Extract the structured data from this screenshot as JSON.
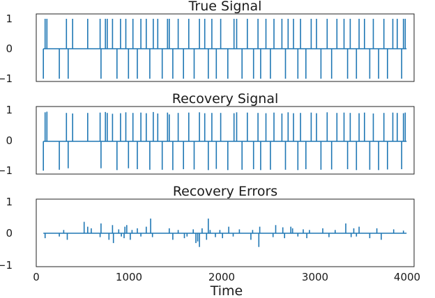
{
  "chart_data": [
    {
      "type": "line",
      "title": "True Signal",
      "xlim": [
        -80,
        4180
      ],
      "ylim": [
        -1.1,
        1.1
      ],
      "yticks": [
        1,
        0,
        -1
      ],
      "ytick_labels": [
        "1",
        "0",
        "−1"
      ],
      "grid": false,
      "color": "#1f77b4",
      "series": [
        {
          "kind": "spikes",
          "points": [
            [
              0,
              -1
            ],
            [
              20,
              1
            ],
            [
              40,
              1
            ],
            [
              180,
              -1
            ],
            [
              260,
              1
            ],
            [
              280,
              -1
            ],
            [
              330,
              1
            ],
            [
              500,
              1
            ],
            [
              640,
              1
            ],
            [
              650,
              -1
            ],
            [
              700,
              1
            ],
            [
              720,
              1
            ],
            [
              780,
              1
            ],
            [
              830,
              -1
            ],
            [
              870,
              1
            ],
            [
              930,
              1
            ],
            [
              960,
              -1
            ],
            [
              1010,
              1
            ],
            [
              1060,
              -1
            ],
            [
              1100,
              1
            ],
            [
              1160,
              1
            ],
            [
              1200,
              -1
            ],
            [
              1240,
              1
            ],
            [
              1290,
              1
            ],
            [
              1340,
              -1
            ],
            [
              1400,
              1
            ],
            [
              1420,
              1
            ],
            [
              1460,
              -1
            ],
            [
              1520,
              1
            ],
            [
              1580,
              -1
            ],
            [
              1640,
              1
            ],
            [
              1700,
              -1
            ],
            [
              1760,
              1
            ],
            [
              1820,
              1
            ],
            [
              1860,
              -1
            ],
            [
              1900,
              1
            ],
            [
              1950,
              -1
            ],
            [
              2000,
              1
            ],
            [
              2080,
              -1
            ],
            [
              2150,
              1
            ],
            [
              2180,
              1
            ],
            [
              2240,
              -1
            ],
            [
              2300,
              1
            ],
            [
              2370,
              -1
            ],
            [
              2420,
              1
            ],
            [
              2450,
              -1
            ],
            [
              2510,
              1
            ],
            [
              2560,
              -1
            ],
            [
              2600,
              1
            ],
            [
              2690,
              1
            ],
            [
              2730,
              -1
            ],
            [
              2760,
              1
            ],
            [
              2820,
              1
            ],
            [
              2870,
              -1
            ],
            [
              2900,
              1
            ],
            [
              2960,
              -1
            ],
            [
              3020,
              1
            ],
            [
              3080,
              1
            ],
            [
              3130,
              -1
            ],
            [
              3200,
              1
            ],
            [
              3250,
              -1
            ],
            [
              3310,
              1
            ],
            [
              3390,
              1
            ],
            [
              3430,
              -1
            ],
            [
              3460,
              1
            ],
            [
              3530,
              -1
            ],
            [
              3560,
              1
            ],
            [
              3620,
              1
            ],
            [
              3680,
              -1
            ],
            [
              3720,
              1
            ],
            [
              3780,
              -1
            ],
            [
              3840,
              1
            ],
            [
              3880,
              -1
            ],
            [
              3940,
              1
            ],
            [
              3990,
              1
            ],
            [
              4040,
              -1
            ],
            [
              4060,
              1
            ],
            [
              4080,
              1
            ]
          ]
        }
      ]
    },
    {
      "type": "line",
      "title": "Recovery Signal",
      "xlim": [
        -80,
        4180
      ],
      "ylim": [
        -1.1,
        1.1
      ],
      "yticks": [
        1,
        0,
        -1
      ],
      "ytick_labels": [
        "1",
        "0",
        "−1"
      ],
      "grid": false,
      "color": "#1f77b4",
      "series": [
        {
          "kind": "spikes",
          "points": [
            [
              0,
              -0.98
            ],
            [
              20,
              0.97
            ],
            [
              40,
              0.99
            ],
            [
              180,
              -0.95
            ],
            [
              260,
              0.95
            ],
            [
              280,
              -0.9
            ],
            [
              330,
              0.93
            ],
            [
              500,
              0.95
            ],
            [
              640,
              0.96
            ],
            [
              650,
              -0.9
            ],
            [
              700,
              0.98
            ],
            [
              720,
              0.95
            ],
            [
              780,
              0.92
            ],
            [
              830,
              -0.96
            ],
            [
              870,
              0.94
            ],
            [
              930,
              0.97
            ],
            [
              960,
              -0.9
            ],
            [
              1010,
              0.95
            ],
            [
              1060,
              -0.93
            ],
            [
              1100,
              0.96
            ],
            [
              1160,
              0.94
            ],
            [
              1200,
              -0.95
            ],
            [
              1240,
              0.98
            ],
            [
              1290,
              0.93
            ],
            [
              1340,
              -0.95
            ],
            [
              1400,
              0.96
            ],
            [
              1420,
              0.9
            ],
            [
              1460,
              -0.96
            ],
            [
              1520,
              0.95
            ],
            [
              1580,
              -0.93
            ],
            [
              1640,
              0.96
            ],
            [
              1700,
              -0.94
            ],
            [
              1760,
              0.97
            ],
            [
              1820,
              0.94
            ],
            [
              1860,
              -0.96
            ],
            [
              1900,
              0.95
            ],
            [
              1950,
              -0.92
            ],
            [
              2000,
              0.95
            ],
            [
              2080,
              -0.96
            ],
            [
              2150,
              0.94
            ],
            [
              2180,
              0.97
            ],
            [
              2240,
              -0.95
            ],
            [
              2300,
              0.96
            ],
            [
              2370,
              -0.93
            ],
            [
              2420,
              0.95
            ],
            [
              2450,
              -0.96
            ],
            [
              2510,
              0.94
            ],
            [
              2560,
              -0.95
            ],
            [
              2600,
              0.96
            ],
            [
              2690,
              0.93
            ],
            [
              2730,
              -0.95
            ],
            [
              2760,
              0.97
            ],
            [
              2820,
              0.94
            ],
            [
              2870,
              -0.96
            ],
            [
              2900,
              0.95
            ],
            [
              2960,
              -0.93
            ],
            [
              3020,
              0.96
            ],
            [
              3080,
              0.94
            ],
            [
              3130,
              -0.95
            ],
            [
              3200,
              0.97
            ],
            [
              3250,
              -0.94
            ],
            [
              3310,
              0.95
            ],
            [
              3390,
              0.96
            ],
            [
              3430,
              -0.93
            ],
            [
              3460,
              0.95
            ],
            [
              3530,
              -0.96
            ],
            [
              3560,
              0.94
            ],
            [
              3620,
              0.96
            ],
            [
              3680,
              -0.95
            ],
            [
              3720,
              0.93
            ],
            [
              3780,
              -0.96
            ],
            [
              3840,
              0.95
            ],
            [
              3880,
              -0.94
            ],
            [
              3940,
              0.96
            ],
            [
              3990,
              0.95
            ],
            [
              4040,
              -0.93
            ],
            [
              4060,
              0.94
            ],
            [
              4080,
              0.96
            ]
          ]
        }
      ]
    },
    {
      "type": "line",
      "title": "Recovery Errors",
      "xlim": [
        -80,
        4180
      ],
      "ylim": [
        -1.1,
        1.1
      ],
      "yticks": [
        1,
        0,
        -1
      ],
      "ytick_labels": [
        "1",
        "0",
        "−1"
      ],
      "xticks": [
        0,
        1000,
        2000,
        3000,
        4000
      ],
      "xtick_labels": [
        "0",
        "1000",
        "2000",
        "3000",
        "4000"
      ],
      "xlabel": "Time",
      "grid": false,
      "color": "#1f77b4",
      "series": [
        {
          "kind": "spikes",
          "points": [
            [
              20,
              -0.15
            ],
            [
              180,
              -0.1
            ],
            [
              230,
              0.1
            ],
            [
              270,
              -0.2
            ],
            [
              460,
              0.35
            ],
            [
              500,
              0.2
            ],
            [
              540,
              0.15
            ],
            [
              640,
              -0.12
            ],
            [
              650,
              0.3
            ],
            [
              740,
              -0.2
            ],
            [
              780,
              0.25
            ],
            [
              790,
              -0.3
            ],
            [
              850,
              0.12
            ],
            [
              880,
              -0.1
            ],
            [
              910,
              -0.15
            ],
            [
              920,
              0.2
            ],
            [
              940,
              0.25
            ],
            [
              980,
              -0.2
            ],
            [
              1000,
              0.1
            ],
            [
              1060,
              0.15
            ],
            [
              1100,
              -0.1
            ],
            [
              1160,
              0.2
            ],
            [
              1210,
              0.45
            ],
            [
              1230,
              -0.12
            ],
            [
              1420,
              0.15
            ],
            [
              1460,
              -0.2
            ],
            [
              1520,
              0.1
            ],
            [
              1590,
              -0.15
            ],
            [
              1620,
              -0.1
            ],
            [
              1690,
              0.12
            ],
            [
              1720,
              -0.3
            ],
            [
              1740,
              -0.25
            ],
            [
              1760,
              -0.42
            ],
            [
              1790,
              0.15
            ],
            [
              1840,
              -0.2
            ],
            [
              1860,
              0.45
            ],
            [
              1880,
              0.1
            ],
            [
              1940,
              -0.12
            ],
            [
              1990,
              0.1
            ],
            [
              2020,
              -0.15
            ],
            [
              2090,
              0.2
            ],
            [
              2140,
              -0.1
            ],
            [
              2210,
              0.12
            ],
            [
              2340,
              -0.2
            ],
            [
              2360,
              0.1
            ],
            [
              2430,
              -0.42
            ],
            [
              2440,
              0.2
            ],
            [
              2590,
              -0.12
            ],
            [
              2620,
              0.25
            ],
            [
              2700,
              0.18
            ],
            [
              2720,
              -0.15
            ],
            [
              2790,
              0.2
            ],
            [
              2810,
              0.15
            ],
            [
              2870,
              -0.1
            ],
            [
              2930,
              0.12
            ],
            [
              2970,
              -0.15
            ],
            [
              3000,
              0.1
            ],
            [
              3150,
              0.15
            ],
            [
              3220,
              -0.12
            ],
            [
              3290,
              0.1
            ],
            [
              3410,
              0.3
            ],
            [
              3470,
              -0.12
            ],
            [
              3500,
              0.15
            ],
            [
              3530,
              -0.1
            ],
            [
              3560,
              0.2
            ],
            [
              3680,
              -0.15
            ],
            [
              3760,
              0.15
            ],
            [
              3810,
              -0.2
            ],
            [
              3950,
              0.12
            ],
            [
              4060,
              0.08
            ]
          ]
        }
      ]
    }
  ]
}
